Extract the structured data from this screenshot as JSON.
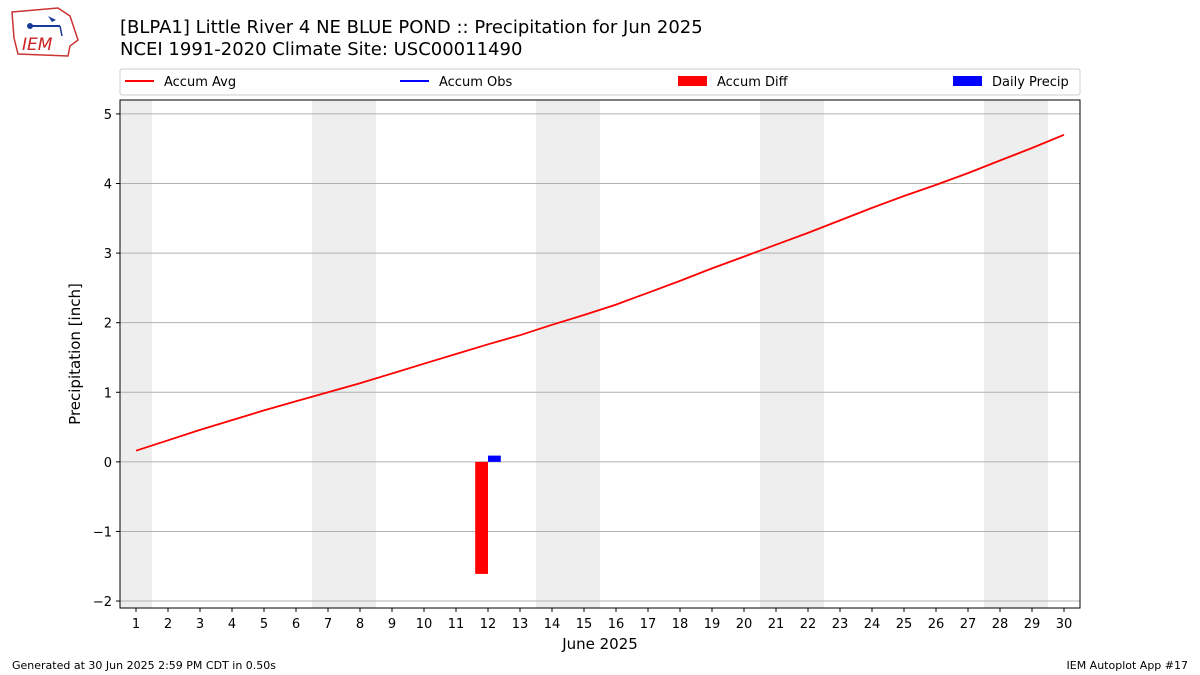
{
  "header": {
    "logo_text": "IEM",
    "title_line1": "[BLPA1] Little River 4 NE BLUE POND :: Precipitation for Jun 2025",
    "title_line2": "NCEI 1991-2020 Climate Site: USC00011490"
  },
  "footer": {
    "generated": "Generated at 30 Jun 2025 2:59 PM CDT in 0.50s",
    "app": "IEM Autoplot App #17"
  },
  "colors": {
    "accum_avg": "#ff0000",
    "accum_obs": "#0000ff",
    "accum_diff": "#ff0000",
    "daily_precip": "#0000ff",
    "weekend_shade": "#eeeeee",
    "grid": "#b0b0b0"
  },
  "chart_data": {
    "type": "line",
    "xlabel": "June 2025",
    "ylabel": "Precipitation [inch]",
    "ylim": [
      -2.1,
      5.2
    ],
    "xlim": [
      0.5,
      30.5
    ],
    "yticks": [
      -2,
      -1,
      0,
      1,
      2,
      3,
      4,
      5
    ],
    "ytick_labels": [
      "−2",
      "−1",
      "0",
      "1",
      "2",
      "3",
      "4",
      "5"
    ],
    "x": [
      1,
      2,
      3,
      4,
      5,
      6,
      7,
      8,
      9,
      10,
      11,
      12,
      13,
      14,
      15,
      16,
      17,
      18,
      19,
      20,
      21,
      22,
      23,
      24,
      25,
      26,
      27,
      28,
      29,
      30
    ],
    "xtick_labels": [
      "1",
      "2",
      "3",
      "4",
      "5",
      "6",
      "7",
      "8",
      "9",
      "10",
      "11",
      "12",
      "13",
      "14",
      "15",
      "16",
      "17",
      "18",
      "19",
      "20",
      "21",
      "22",
      "23",
      "24",
      "25",
      "26",
      "27",
      "28",
      "29",
      "30"
    ],
    "grid": "y",
    "legend_position": "top",
    "weekend_shading": [
      [
        0.5,
        1.5
      ],
      [
        6.5,
        8.5
      ],
      [
        13.5,
        15.5
      ],
      [
        20.5,
        22.5
      ],
      [
        27.5,
        29.5
      ]
    ],
    "legend": [
      {
        "name": "Accum Avg",
        "kind": "line",
        "color": "#ff0000"
      },
      {
        "name": "Accum Obs",
        "kind": "line",
        "color": "#0000ff"
      },
      {
        "name": "Accum Diff",
        "kind": "bar",
        "color": "#ff0000"
      },
      {
        "name": "Daily Precip",
        "kind": "bar",
        "color": "#0000ff"
      }
    ],
    "series": [
      {
        "name": "Accum Avg",
        "type": "line",
        "color": "#ff0000",
        "x": [
          1,
          2,
          3,
          4,
          5,
          6,
          7,
          8,
          9,
          10,
          11,
          12,
          13,
          14,
          15,
          16,
          17,
          18,
          19,
          20,
          21,
          22,
          23,
          24,
          25,
          26,
          27,
          28,
          29,
          30
        ],
        "values": [
          0.16,
          0.31,
          0.46,
          0.6,
          0.74,
          0.87,
          1.0,
          1.13,
          1.27,
          1.41,
          1.55,
          1.69,
          1.82,
          1.97,
          2.11,
          2.26,
          2.43,
          2.6,
          2.78,
          2.95,
          3.12,
          3.29,
          3.47,
          3.65,
          3.82,
          3.98,
          4.15,
          4.33,
          4.51,
          4.7
        ]
      },
      {
        "name": "Accum Obs",
        "type": "line",
        "color": "#0000ff",
        "x": [],
        "values": []
      },
      {
        "name": "Accum Diff",
        "type": "bar",
        "color": "#ff0000",
        "x": [
          11.8
        ],
        "values": [
          -1.61
        ]
      },
      {
        "name": "Daily Precip",
        "type": "bar",
        "color": "#0000ff",
        "x": [
          12.2
        ],
        "values": [
          0.09
        ]
      }
    ]
  }
}
